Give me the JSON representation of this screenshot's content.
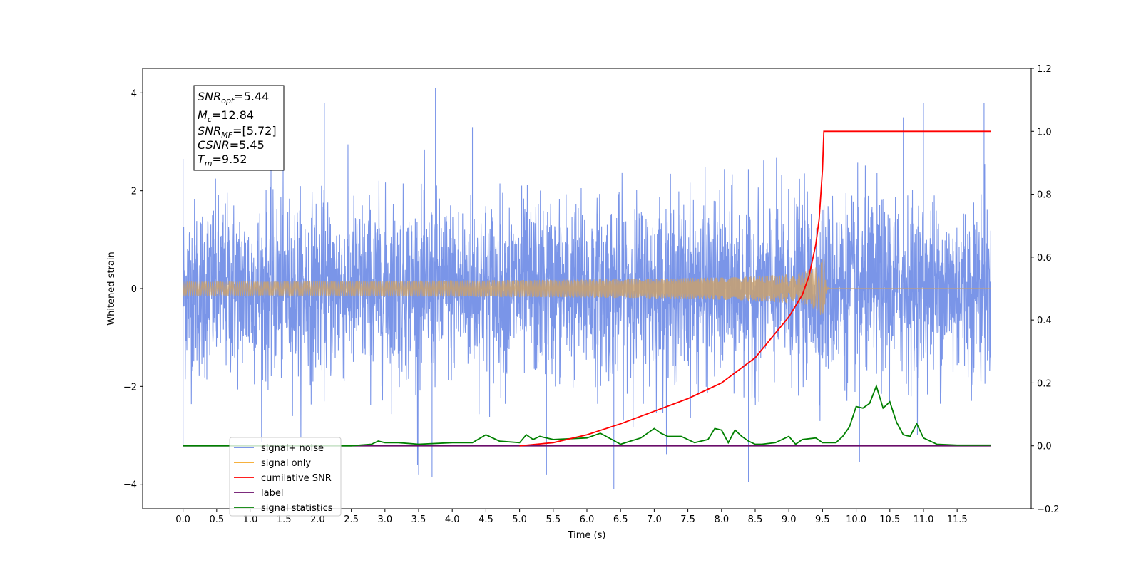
{
  "chart_data": {
    "type": "line",
    "xlabel": "Time (s)",
    "ylabel_left": "Whitened strain",
    "ylabel_right": "",
    "xlim": [
      -0.6,
      12.6
    ],
    "ylim_left": [
      -4.5,
      4.5
    ],
    "ylim_right": [
      -0.2,
      1.2
    ],
    "x_ticks": [
      "0.0",
      "0.5",
      "1.0",
      "1.5",
      "2.0",
      "2.5",
      "3.0",
      "3.5",
      "4.0",
      "4.5",
      "5.0",
      "5.5",
      "6.0",
      "6.5",
      "7.0",
      "7.5",
      "8.0",
      "8.5",
      "9.0",
      "9.5",
      "10.0",
      "10.5",
      "11.0",
      "11.5"
    ],
    "y_ticks_left": [
      "−4",
      "−2",
      "0",
      "2",
      "4"
    ],
    "y_ticks_right": [
      "−0.2",
      "0.0",
      "0.2",
      "0.4",
      "0.6",
      "0.8",
      "1.0",
      "1.2"
    ],
    "grid": false,
    "legend_position": "lower-left",
    "annotation": {
      "snr_opt": "5.44",
      "mc": "12.84",
      "snr_mf": "[5.72]",
      "csnr": "5.45",
      "tm": "9.52"
    },
    "series": [
      {
        "name": "signal+ noise",
        "axis": "left",
        "color": "#6b8ae6",
        "x_range": [
          0.0,
          12.0
        ],
        "amplitude_std": 0.9,
        "peak_values": [
          {
            "x": 0.0,
            "y": 2.65
          },
          {
            "x": 0.0,
            "y": -3.2
          },
          {
            "x": 2.1,
            "y": 3.8
          },
          {
            "x": 3.75,
            "y": 4.1
          },
          {
            "x": 3.5,
            "y": -3.8
          },
          {
            "x": 3.7,
            "y": -3.85
          },
          {
            "x": 4.3,
            "y": 3.3
          },
          {
            "x": 5.4,
            "y": -3.8
          },
          {
            "x": 6.4,
            "y": -4.1
          },
          {
            "x": 8.4,
            "y": -3.95
          },
          {
            "x": 10.7,
            "y": 3.5
          },
          {
            "x": 11.0,
            "y": 3.8
          },
          {
            "x": 11.9,
            "y": 3.8
          },
          {
            "x": 10.05,
            "y": -3.55
          }
        ]
      },
      {
        "name": "signal only",
        "axis": "left",
        "color": "#f5a623",
        "merger_time": 9.52,
        "peak_amplitude": 0.8
      },
      {
        "name": "cumilative SNR",
        "axis": "right",
        "color": "#ff0000",
        "x": [
          5.0,
          5.5,
          6.0,
          6.5,
          7.0,
          7.5,
          8.0,
          8.5,
          9.0,
          9.2,
          9.3,
          9.4,
          9.45,
          9.5,
          9.52,
          12.0
        ],
        "y": [
          0.0,
          0.01,
          0.035,
          0.07,
          0.11,
          0.15,
          0.2,
          0.28,
          0.41,
          0.48,
          0.54,
          0.64,
          0.72,
          0.88,
          1.0,
          1.0
        ]
      },
      {
        "name": "label",
        "axis": "right",
        "color": "#6a0d6a",
        "x": [
          0.0,
          12.0
        ],
        "y": [
          0.0,
          0.0
        ]
      },
      {
        "name": "signal statistics",
        "axis": "right",
        "color": "#008000",
        "x": [
          0.0,
          1.0,
          2.0,
          2.5,
          2.8,
          2.9,
          3.0,
          3.2,
          3.5,
          4.0,
          4.3,
          4.5,
          4.7,
          5.0,
          5.1,
          5.2,
          5.3,
          5.5,
          6.0,
          6.2,
          6.5,
          6.8,
          7.0,
          7.1,
          7.2,
          7.4,
          7.6,
          7.8,
          7.9,
          8.0,
          8.1,
          8.2,
          8.3,
          8.4,
          8.5,
          8.6,
          8.8,
          9.0,
          9.1,
          9.2,
          9.4,
          9.5,
          9.7,
          9.8,
          9.9,
          10.0,
          10.1,
          10.2,
          10.3,
          10.4,
          10.5,
          10.6,
          10.7,
          10.8,
          10.9,
          11.0,
          11.2,
          11.5,
          12.0
        ],
        "y": [
          0.0,
          0.0,
          0.0,
          0.0,
          0.005,
          0.015,
          0.01,
          0.01,
          0.005,
          0.01,
          0.01,
          0.035,
          0.015,
          0.01,
          0.035,
          0.02,
          0.03,
          0.02,
          0.025,
          0.04,
          0.005,
          0.025,
          0.055,
          0.04,
          0.03,
          0.03,
          0.01,
          0.02,
          0.055,
          0.05,
          0.01,
          0.05,
          0.03,
          0.015,
          0.005,
          0.005,
          0.01,
          0.03,
          0.005,
          0.02,
          0.025,
          0.01,
          0.01,
          0.03,
          0.06,
          0.125,
          0.12,
          0.135,
          0.19,
          0.12,
          0.14,
          0.075,
          0.035,
          0.03,
          0.07,
          0.025,
          0.005,
          0.002,
          0.002
        ]
      }
    ]
  }
}
